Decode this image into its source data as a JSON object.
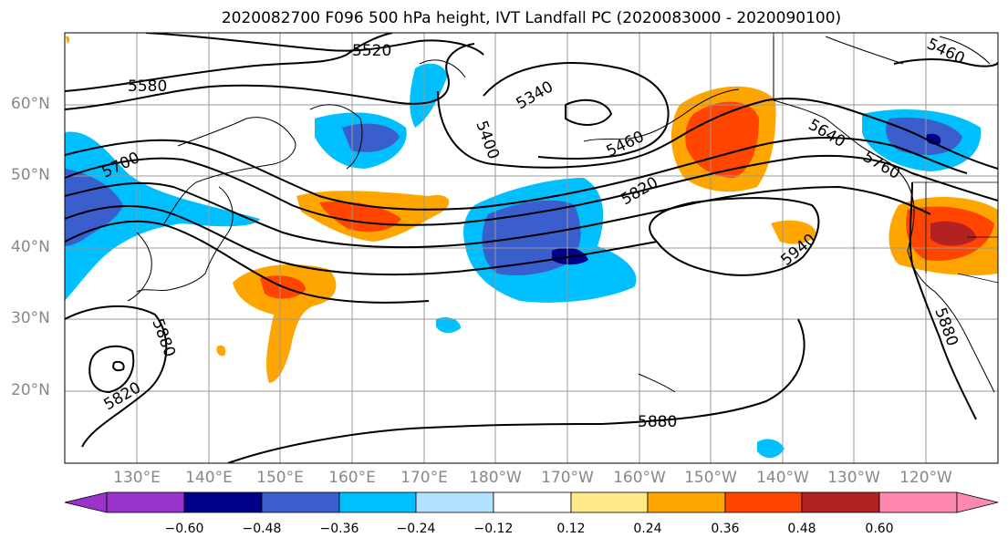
{
  "title": "2020082700 F096 500 hPa height, IVT Landfall PC (2020083000 - 2020090100)",
  "lat_labels": [
    "60°N",
    "50°N",
    "40°N",
    "30°N",
    "20°N"
  ],
  "lon_labels": [
    "130°E",
    "140°E",
    "150°E",
    "160°E",
    "170°E",
    "180°W",
    "170°W",
    "160°W",
    "150°W",
    "140°W",
    "130°W",
    "120°W"
  ],
  "contour_labels": [
    "5520",
    "5580",
    "5340",
    "5400",
    "5460",
    "5460",
    "5700",
    "5820",
    "5640",
    "5760",
    "5940",
    "5880",
    "5880",
    "5820",
    "5880"
  ],
  "colorbar": {
    "ticks": [
      "−0.60",
      "−0.48",
      "−0.36",
      "−0.24",
      "−0.12",
      "0.12",
      "0.24",
      "0.36",
      "0.48",
      "0.60"
    ],
    "colors": [
      "#9933cc",
      "#00008b",
      "#3a5fcd",
      "#00bfff",
      "#b0e2ff",
      "#ffffff",
      "#ffe88a",
      "#ffa500",
      "#ff4500",
      "#b22222",
      "#ff88b0"
    ]
  }
}
